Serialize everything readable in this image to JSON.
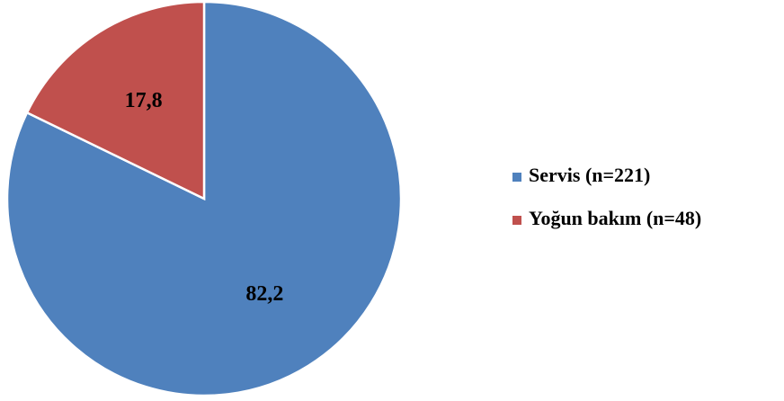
{
  "chart_data": {
    "type": "pie",
    "categories": [
      "Servis (n=221)",
      "Yoğun bakım (n=48)"
    ],
    "values": [
      82.2,
      17.8
    ],
    "value_labels": [
      "82,2",
      "17,8"
    ],
    "colors": [
      "#4f81bd",
      "#c0504d"
    ],
    "legend": "right"
  }
}
